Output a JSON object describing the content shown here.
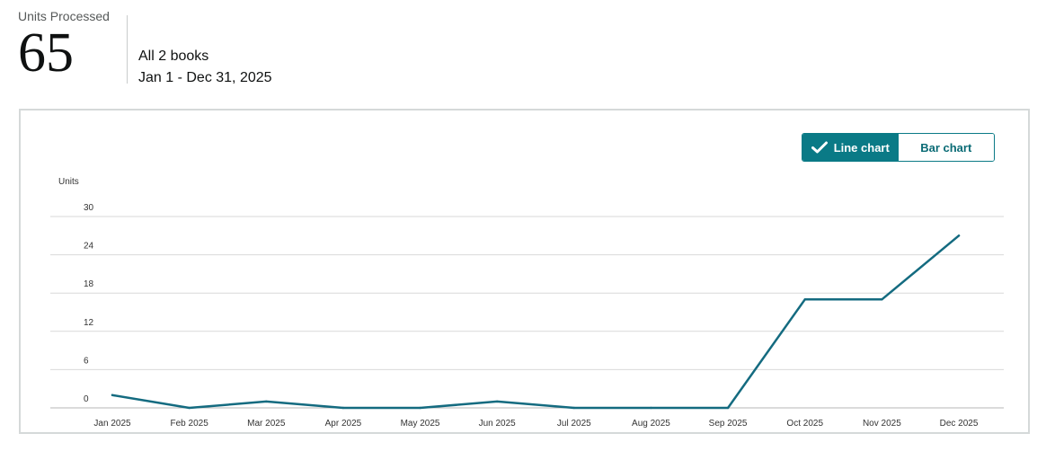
{
  "summary": {
    "metric_label": "Units Processed",
    "metric_value": "65",
    "scope_books": "All 2 books",
    "date_range": "Jan 1 - Dec 31, 2025"
  },
  "toggle": {
    "line_label": "Line chart",
    "bar_label": "Bar chart",
    "selected": "line",
    "accent_color": "#0a7a86"
  },
  "chart_data": {
    "type": "line",
    "ylabel": "Units",
    "xlabel": "",
    "categories": [
      "Jan 2025",
      "Feb 2025",
      "Mar 2025",
      "Apr 2025",
      "May 2025",
      "Jun 2025",
      "Jul 2025",
      "Aug 2025",
      "Sep 2025",
      "Oct 2025",
      "Nov 2025",
      "Dec 2025"
    ],
    "yticks": [
      0,
      6,
      12,
      18,
      24,
      30
    ],
    "ylim": [
      0,
      30
    ],
    "series": [
      {
        "values": [
          2,
          0,
          1,
          0,
          0,
          1,
          0,
          0,
          0,
          17,
          17,
          27
        ],
        "color": "#146b80"
      }
    ],
    "grid": true
  }
}
